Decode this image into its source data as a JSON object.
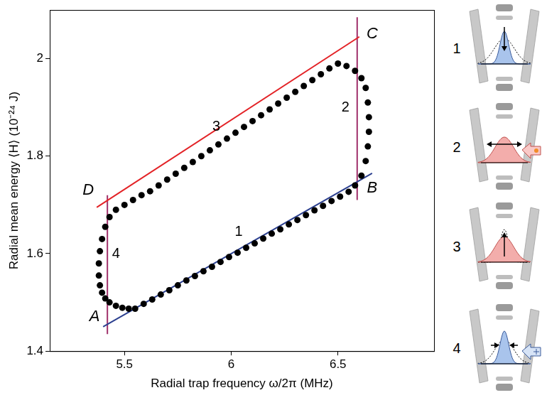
{
  "chart_data": {
    "type": "scatter",
    "x_label": "Radial trap frequency ω/2π (MHz)",
    "y_label": "Radial mean energy ⟨H⟩ (10⁻²⁴ J)",
    "xlim": [
      5.15,
      6.95
    ],
    "ylim": [
      1.4,
      2.1
    ],
    "xticks": [
      5.5,
      6,
      6.5
    ],
    "yticks": [
      1.4,
      1.6,
      1.8,
      2
    ],
    "grid": false,
    "series": [
      {
        "type": "scatter",
        "marker": "circle",
        "color": "#000000",
        "x": [
          5.55,
          5.59,
          5.63,
          5.67,
          5.71,
          5.75,
          5.79,
          5.83,
          5.87,
          5.91,
          5.95,
          5.99,
          6.03,
          6.07,
          6.11,
          6.15,
          6.19,
          6.23,
          6.27,
          6.31,
          6.35,
          6.39,
          6.43,
          6.47,
          6.51,
          6.55,
          6.58,
          6.61,
          6.63,
          6.64,
          6.645,
          6.645,
          6.64,
          6.63,
          6.61,
          6.58,
          6.54,
          6.5,
          6.46,
          6.42,
          6.38,
          6.34,
          6.3,
          6.26,
          6.22,
          6.18,
          6.14,
          6.1,
          6.06,
          6.02,
          5.98,
          5.94,
          5.9,
          5.86,
          5.82,
          5.78,
          5.74,
          5.7,
          5.66,
          5.62,
          5.58,
          5.54,
          5.5,
          5.46,
          5.43,
          5.41,
          5.395,
          5.385,
          5.38,
          5.38,
          5.385,
          5.395,
          5.41,
          5.43,
          5.46,
          5.49,
          5.52
        ],
        "values": [
          1.487,
          1.497,
          1.506,
          1.516,
          1.525,
          1.535,
          1.545,
          1.554,
          1.564,
          1.573,
          1.583,
          1.593,
          1.602,
          1.612,
          1.621,
          1.631,
          1.641,
          1.65,
          1.66,
          1.669,
          1.679,
          1.689,
          1.698,
          1.708,
          1.717,
          1.727,
          1.74,
          1.76,
          1.79,
          1.82,
          1.85,
          1.88,
          1.91,
          1.94,
          1.96,
          1.975,
          1.985,
          1.99,
          1.98,
          1.968,
          1.956,
          1.944,
          1.932,
          1.92,
          1.908,
          1.896,
          1.884,
          1.872,
          1.86,
          1.848,
          1.836,
          1.824,
          1.812,
          1.8,
          1.788,
          1.776,
          1.764,
          1.752,
          1.74,
          1.728,
          1.72,
          1.71,
          1.7,
          1.69,
          1.675,
          1.655,
          1.63,
          1.605,
          1.58,
          1.555,
          1.535,
          1.52,
          1.508,
          1.5,
          1.493,
          1.489,
          1.487
        ]
      },
      {
        "type": "line",
        "color": "#2b3f8f",
        "x": [
          5.4,
          6.66
        ],
        "values": [
          1.45,
          1.765
        ]
      },
      {
        "type": "line",
        "color": "#e32226",
        "x": [
          5.37,
          6.6
        ],
        "values": [
          1.695,
          2.045
        ]
      },
      {
        "type": "line",
        "color": "#a0306a",
        "x": [
          5.42,
          5.42
        ],
        "values": [
          1.435,
          1.72
        ]
      },
      {
        "type": "line",
        "color": "#a0306a",
        "x": [
          6.59,
          6.59
        ],
        "values": [
          1.71,
          2.085
        ]
      }
    ],
    "point_labels": [
      {
        "text": "A",
        "x": 5.36,
        "y": 1.47
      },
      {
        "text": "B",
        "x": 6.66,
        "y": 1.735
      },
      {
        "text": "C",
        "x": 6.66,
        "y": 2.05
      },
      {
        "text": "D",
        "x": 5.33,
        "y": 1.73
      }
    ],
    "stage_labels": [
      {
        "text": "1",
        "x": 6.035,
        "y": 1.645
      },
      {
        "text": "2",
        "x": 6.535,
        "y": 1.9
      },
      {
        "text": "3",
        "x": 5.93,
        "y": 1.86
      },
      {
        "text": "4",
        "x": 5.46,
        "y": 1.6
      }
    ],
    "side_labels": [
      "1",
      "2",
      "3",
      "4"
    ]
  }
}
